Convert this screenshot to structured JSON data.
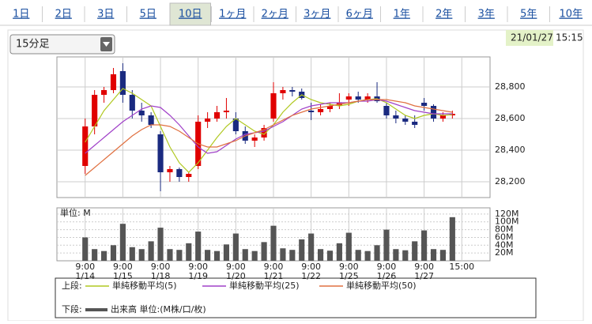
{
  "tabs": [
    "1日",
    "2日",
    "3日",
    "5日",
    "10日",
    "1ヶ月",
    "2ヶ月",
    "3ヶ月",
    "6ヶ月",
    "1年",
    "2年",
    "3年",
    "5年",
    "10年"
  ],
  "active_tab": 4,
  "dropdown": "15分足",
  "date": "21/01/27",
  "time": "15:15",
  "legend": {
    "upper": "上段:",
    "lower": "下段:"
  },
  "chart_data": [
    {
      "type": "candlestick",
      "x": [
        0,
        1,
        2,
        3,
        4,
        5,
        6,
        7,
        8,
        9,
        10,
        11,
        12,
        13,
        14,
        15,
        16,
        17,
        18,
        19,
        20,
        21,
        22,
        23,
        24,
        25,
        26,
        27,
        28,
        29,
        30,
        31,
        32,
        33,
        34,
        35,
        36,
        37,
        38,
        39
      ],
      "xlim": [
        -3,
        43
      ],
      "open": [
        28300,
        28550,
        28750,
        28780,
        28900,
        28750,
        28650,
        28620,
        28500,
        28260,
        28280,
        28230,
        28300,
        28580,
        28600,
        28640,
        28600,
        28520,
        28460,
        28480,
        28600,
        28760,
        28780,
        28770,
        28650,
        28640,
        28660,
        28680,
        28720,
        28740,
        28720,
        28740,
        28680,
        28620,
        28600,
        28580,
        28700,
        28680,
        28600,
        28620
      ],
      "high": [
        28600,
        28780,
        28800,
        28920,
        28950,
        28780,
        28700,
        28640,
        28520,
        28300,
        28290,
        28260,
        28620,
        28640,
        28680,
        28730,
        28640,
        28550,
        28500,
        28560,
        28830,
        28800,
        28800,
        28790,
        28700,
        28690,
        28700,
        28760,
        28760,
        28770,
        28760,
        28830,
        28700,
        28650,
        28620,
        28620,
        28730,
        28690,
        28640,
        28650
      ],
      "low": [
        28250,
        28500,
        28700,
        28760,
        28700,
        28600,
        28580,
        28540,
        28140,
        28200,
        28200,
        28200,
        28280,
        28540,
        28580,
        28600,
        28500,
        28440,
        28420,
        28460,
        28580,
        28720,
        28740,
        28720,
        28590,
        28620,
        28640,
        28660,
        28680,
        28700,
        28700,
        28700,
        28600,
        28570,
        28560,
        28540,
        28650,
        28580,
        28580,
        28600
      ],
      "close": [
        28550,
        28750,
        28780,
        28880,
        28750,
        28650,
        28620,
        28560,
        28260,
        28280,
        28230,
        28250,
        28580,
        28600,
        28640,
        28650,
        28520,
        28460,
        28480,
        28540,
        28760,
        28780,
        28770,
        28730,
        28640,
        28660,
        28680,
        28700,
        28740,
        28720,
        28740,
        28710,
        28620,
        28600,
        28580,
        28560,
        28680,
        28600,
        28620,
        28630
      ],
      "up_color": "#e00000",
      "down_color": "#1a2a80",
      "lines": [
        {
          "name": "単純移動平均(5)",
          "color": "#b0c820",
          "values": [
            28450,
            28550,
            28650,
            28720,
            28790,
            28760,
            28720,
            28680,
            28550,
            28420,
            28320,
            28260,
            28320,
            28400,
            28480,
            28550,
            28600,
            28560,
            28520,
            28500,
            28560,
            28640,
            28700,
            28750,
            28720,
            28700,
            28690,
            28680,
            28690,
            28710,
            28720,
            28725,
            28700,
            28660,
            28620,
            28600,
            28620,
            28630,
            28620,
            28625
          ]
        },
        {
          "name": "単純移動平均(25)",
          "color": "#a040c8",
          "values": [
            28380,
            28430,
            28480,
            28530,
            28580,
            28620,
            28660,
            28680,
            28670,
            28620,
            28560,
            28490,
            28420,
            28380,
            28390,
            28430,
            28470,
            28500,
            28510,
            28520,
            28550,
            28580,
            28620,
            28660,
            28680,
            28690,
            28700,
            28700,
            28700,
            28710,
            28710,
            28720,
            28710,
            28690,
            28670,
            28650,
            28640,
            28630,
            28630,
            28630
          ]
        },
        {
          "name": "単純移動平均(50)",
          "color": "#e07040",
          "values": [
            28240,
            28290,
            28340,
            28390,
            28440,
            28490,
            28530,
            28560,
            28560,
            28550,
            28520,
            28480,
            28440,
            28420,
            28420,
            28440,
            28460,
            28490,
            28510,
            28530,
            28560,
            28590,
            28620,
            28640,
            28660,
            28670,
            28680,
            28690,
            28700,
            28710,
            28720,
            28720,
            28720,
            28710,
            28700,
            28680,
            28670,
            28660,
            28650,
            28640
          ]
        }
      ],
      "ylim": [
        28100,
        28990
      ],
      "yticks": [
        {
          "value": 28200,
          "label": "28,200"
        },
        {
          "value": 28400,
          "label": "28,400"
        },
        {
          "value": 28600,
          "label": "28,600"
        },
        {
          "value": 28800,
          "label": "28,800"
        }
      ],
      "grid": true
    },
    {
      "type": "bar",
      "unit_label": "単位: M",
      "name": "出来高 単位:(M株/口/枚)",
      "x": [
        0,
        1,
        2,
        3,
        4,
        5,
        6,
        7,
        8,
        9,
        10,
        11,
        12,
        13,
        14,
        15,
        16,
        17,
        18,
        19,
        20,
        21,
        22,
        23,
        24,
        25,
        26,
        27,
        28,
        29,
        30,
        31,
        32,
        33,
        34,
        35,
        36,
        37,
        38,
        39
      ],
      "xlim": [
        -3,
        43
      ],
      "values": [
        60,
        30,
        25,
        40,
        95,
        35,
        30,
        50,
        85,
        30,
        28,
        45,
        75,
        28,
        25,
        42,
        70,
        30,
        25,
        48,
        90,
        32,
        28,
        55,
        70,
        30,
        26,
        45,
        72,
        28,
        25,
        40,
        80,
        30,
        27,
        50,
        78,
        30,
        28,
        112
      ],
      "color": "#555555",
      "ylim": [
        0,
        136
      ],
      "yticks": [
        {
          "value": 20,
          "label": "20M"
        },
        {
          "value": 40,
          "label": "40M"
        },
        {
          "value": 60,
          "label": "60M"
        },
        {
          "value": 80,
          "label": "80M"
        },
        {
          "value": 100,
          "label": "100M"
        },
        {
          "value": 120,
          "label": "120M"
        }
      ],
      "xticks": [
        {
          "value": 0,
          "label": "9:00"
        },
        {
          "value": 4,
          "label": "9:00"
        },
        {
          "value": 8,
          "label": "9:00"
        },
        {
          "value": 12,
          "label": "9:00"
        },
        {
          "value": 16,
          "label": "9:00"
        },
        {
          "value": 20,
          "label": "9:00"
        },
        {
          "value": 24,
          "label": "9:00"
        },
        {
          "value": 28,
          "label": "9:00"
        },
        {
          "value": 32,
          "label": "9:00"
        },
        {
          "value": 36,
          "label": "9:00"
        },
        {
          "value": 40,
          "label": "15:00"
        }
      ],
      "xtick_dates": [
        "1/14",
        "1/15",
        "1/18",
        "1/19",
        "1/20",
        "1/21",
        "1/22",
        "1/25",
        "1/26",
        "1/27"
      ],
      "grid": true
    }
  ]
}
